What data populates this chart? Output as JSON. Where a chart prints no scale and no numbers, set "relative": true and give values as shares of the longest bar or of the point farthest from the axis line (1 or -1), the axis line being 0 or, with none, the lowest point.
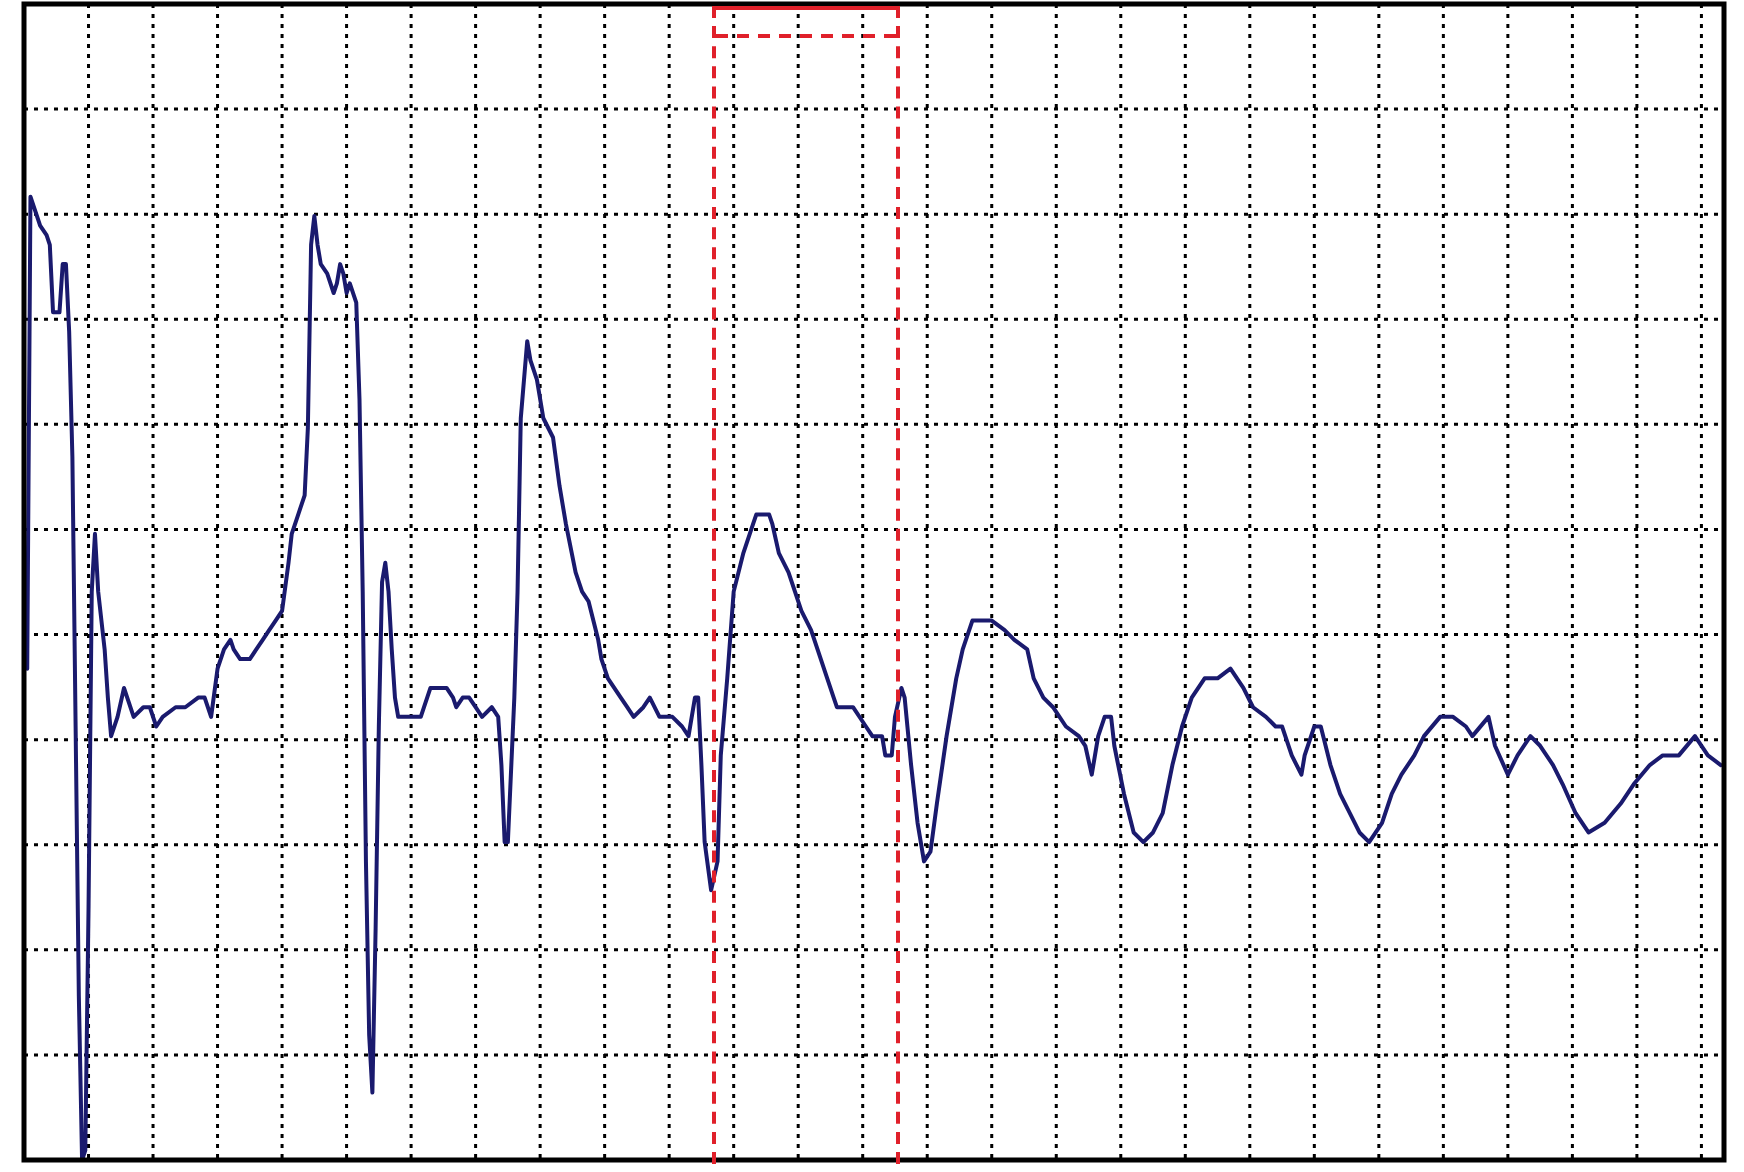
{
  "chart_data": {
    "type": "line",
    "relative": true,
    "grid": true,
    "marker": "none",
    "line_style": "solid",
    "categories": [
      null,
      null,
      null,
      null,
      null,
      null,
      null,
      null,
      null,
      null,
      null,
      null,
      null,
      null,
      null,
      null,
      null,
      null,
      null,
      null,
      null,
      null,
      null,
      null,
      null,
      null,
      null,
      null,
      null,
      null,
      null,
      null,
      null,
      null,
      null,
      null,
      null,
      null,
      null,
      null,
      null,
      null,
      null,
      null,
      null,
      null,
      null,
      null,
      null,
      null,
      null,
      null,
      null,
      null,
      null,
      null,
      null,
      null,
      null,
      null,
      null,
      null,
      null,
      null,
      null,
      null,
      null,
      null,
      null,
      null,
      null,
      null,
      null,
      null,
      null,
      null,
      null,
      null,
      null,
      null,
      null,
      null,
      null,
      null,
      null,
      null,
      null,
      null,
      null,
      null,
      null,
      null,
      null,
      null,
      null,
      null,
      null,
      null,
      null,
      null,
      null,
      null,
      null,
      null,
      null,
      null,
      null,
      null,
      null,
      null,
      null,
      null,
      null,
      null,
      null,
      null,
      null,
      null,
      null,
      null,
      null,
      null,
      null,
      null,
      null,
      null,
      null,
      null,
      null,
      null,
      null,
      null,
      null,
      null,
      null,
      null,
      null,
      null,
      null,
      null,
      null,
      null,
      null,
      null,
      null,
      null,
      null,
      null,
      null,
      null,
      null,
      null,
      null,
      null,
      null,
      null,
      null,
      null,
      null,
      null,
      null,
      null,
      null,
      null,
      null,
      null,
      null,
      null,
      null,
      null,
      null,
      null,
      null,
      null,
      null,
      null,
      null,
      null,
      null,
      null,
      null,
      null,
      null,
      null,
      null,
      null,
      null,
      null,
      null,
      null,
      null,
      null,
      null,
      null,
      null,
      null,
      null,
      null,
      null,
      null,
      null,
      null,
      null,
      null,
      null,
      null,
      null,
      null,
      null,
      null,
      null,
      null,
      null,
      null,
      null,
      null,
      null,
      null,
      null,
      null,
      null,
      null,
      null,
      null,
      null,
      null,
      null,
      null,
      null,
      null,
      null,
      null,
      null,
      null,
      null,
      null,
      null,
      null,
      null,
      null,
      null,
      null,
      null,
      null,
      null,
      null,
      null,
      null,
      null,
      null,
      null,
      null,
      null,
      null,
      null,
      null,
      null,
      null,
      null,
      null,
      null,
      null,
      null,
      null,
      null,
      null,
      null,
      null,
      null,
      null,
      null,
      null,
      null,
      null,
      null,
      null,
      null,
      null,
      null,
      null,
      null,
      null,
      null,
      null,
      null,
      null,
      null,
      null,
      null,
      null,
      null,
      null,
      null,
      null,
      null,
      null,
      null,
      null,
      null,
      null,
      null,
      null,
      null,
      null,
      null,
      null,
      null,
      null,
      null,
      null,
      null,
      null,
      null,
      null,
      null,
      null,
      null,
      null,
      null,
      null,
      null,
      null,
      null,
      null,
      null,
      null,
      null,
      null,
      null,
      null,
      null,
      null,
      null,
      null,
      null,
      null,
      null,
      null,
      null,
      null,
      null,
      null,
      null,
      null,
      null,
      null,
      null,
      null,
      null,
      null,
      null,
      null,
      null,
      null,
      null,
      null,
      null,
      null,
      null,
      null,
      null,
      null,
      null,
      null,
      null,
      null,
      null,
      null,
      null,
      null,
      null,
      null,
      null,
      null,
      null,
      null,
      null,
      null,
      null,
      null,
      null,
      null,
      null,
      null,
      null,
      null,
      null,
      null,
      null,
      null,
      null,
      null,
      null,
      null,
      null,
      null,
      null,
      null,
      null,
      null,
      null,
      null,
      null,
      null,
      null,
      null,
      null,
      null,
      null,
      null,
      null,
      null,
      null,
      null,
      null,
      null,
      null,
      null,
      null,
      null,
      null,
      null,
      null,
      null,
      null,
      null,
      null,
      null,
      null,
      null,
      null,
      null,
      null,
      null,
      null,
      null,
      null,
      null,
      null,
      null,
      null,
      null,
      null,
      null,
      null,
      null,
      null,
      null,
      null,
      null,
      null,
      null,
      null,
      null,
      null,
      null,
      null,
      null,
      null,
      null,
      null,
      null,
      null,
      null,
      null,
      null,
      null,
      null,
      null,
      null,
      null,
      null,
      null,
      null,
      null,
      null,
      null,
      null,
      null,
      null,
      null,
      null,
      null,
      null,
      null,
      null,
      null,
      null,
      null,
      null,
      null,
      null,
      null,
      null,
      null,
      null,
      null,
      null,
      null,
      null,
      null,
      null,
      null,
      null,
      null,
      null,
      null,
      null,
      null,
      null,
      null,
      null,
      null,
      null,
      null,
      null,
      null,
      null,
      null,
      null,
      null,
      null,
      null,
      null,
      null,
      null,
      null,
      null
    ],
    "series": [
      {
        "color": "#1a1a6e",
        "values": [
          null,
          0.51,
          1.0,
          null,
          0.98,
          0.97,
          null,
          0.96,
          0.95,
          0.88,
          null,
          0.88,
          0.93,
          0.93,
          0.86,
          0.73,
          0.45,
          0.17,
          0.0,
          0.01,
          0.26,
          0.59,
          0.65,
          0.59,
          null,
          0.53,
          0.48,
          0.44,
          null,
          0.46,
          null,
          0.49,
          0.48,
          null,
          0.46,
          null,
          null,
          0.47,
          null,
          0.47,
          null,
          0.45,
          null,
          0.46,
          null,
          null,
          null,
          0.47,
          null,
          null,
          0.47,
          null,
          null,
          null,
          0.48,
          null,
          0.48,
          null,
          0.46,
          null,
          0.51,
          null,
          0.53,
          null,
          0.54,
          0.53,
          null,
          0.52,
          null,
          null,
          0.52,
          null,
          0.53,
          null,
          0.54,
          null,
          0.55,
          null,
          0.56,
          null,
          0.57,
          null,
          0.62,
          0.65,
          null,
          0.67,
          null,
          0.69,
          0.76,
          0.95,
          0.98,
          0.95,
          0.93,
          null,
          0.92,
          null,
          0.9,
          0.91,
          0.93,
          0.92,
          0.9,
          0.91,
          null,
          0.89,
          0.79,
          0.59,
          0.31,
          0.13,
          0.07,
          0.24,
          0.45,
          0.6,
          0.62,
          0.59,
          0.53,
          0.48,
          0.46,
          null,
          null,
          0.46,
          null,
          null,
          null,
          0.46,
          0.47,
          null,
          0.49,
          null,
          null,
          0.49,
          null,
          0.49,
          null,
          0.48,
          0.47,
          null,
          0.48,
          null,
          0.48,
          null,
          0.47,
          null,
          0.46,
          null,
          null,
          0.47,
          null,
          0.46,
          0.41,
          0.33,
          0.33,
          null,
          0.48,
          0.59,
          0.77,
          null,
          0.85,
          0.83,
          null,
          0.81,
          null,
          0.77,
          null,
          null,
          0.75,
          null,
          0.7,
          null,
          0.66,
          null,
          null,
          0.61,
          null,
          0.59,
          null,
          0.58,
          null,
          null,
          0.54,
          0.52,
          null,
          0.5,
          null,
          null,
          null,
          0.48,
          null,
          0.47,
          null,
          0.46,
          null,
          null,
          0.47,
          null,
          0.48,
          null,
          null,
          0.46,
          null,
          null,
          0.46,
          0.46,
          null,
          null,
          0.45,
          null,
          0.44,
          null,
          0.48,
          0.48,
          0.41,
          0.33,
          null,
          0.28,
          null,
          0.31,
          0.42,
          null,
          0.5,
          null,
          0.59,
          null,
          null,
          0.63,
          null,
          null,
          0.66,
          0.67,
          null,
          null,
          null,
          0.67,
          0.66,
          null,
          0.63,
          null,
          null,
          0.61,
          null,
          0.59,
          null,
          0.57,
          null,
          null,
          0.55,
          null,
          0.53,
          null,
          null,
          0.5,
          null,
          0.48,
          0.47,
          null,
          null,
          null,
          null,
          0.47,
          null,
          null,
          null,
          0.45,
          null,
          0.44,
          null,
          null,
          0.44,
          0.42,
          null,
          0.42,
          0.46,
          null,
          0.49,
          0.48,
          null,
          0.41,
          null,
          0.35,
          null,
          0.31,
          null,
          0.32,
          null,
          0.37,
          null,
          null,
          0.44,
          null,
          null,
          0.5,
          null,
          0.53,
          null,
          null,
          0.56,
          null,
          null,
          0.56,
          null,
          null,
          0.56,
          null,
          null,
          null,
          0.55,
          null,
          null,
          0.54,
          null,
          null,
          null,
          0.53,
          null,
          0.5,
          null,
          null,
          0.48,
          null,
          null,
          0.47,
          null,
          null,
          null,
          0.45,
          null,
          null,
          null,
          0.44,
          null,
          0.43,
          null,
          0.4,
          null,
          0.44,
          null,
          0.46,
          null,
          0.46,
          0.43,
          null,
          null,
          0.38,
          null,
          null,
          0.34,
          null,
          null,
          0.33,
          null,
          null,
          0.34,
          null,
          null,
          0.36,
          null,
          null,
          0.41,
          null,
          null,
          0.45,
          null,
          null,
          0.48,
          null,
          null,
          null,
          0.5,
          null,
          null,
          null,
          0.5,
          null,
          null,
          null,
          0.51,
          null,
          null,
          null,
          0.49,
          null,
          null,
          0.47,
          null,
          null,
          null,
          0.46,
          null,
          null,
          0.45,
          null,
          0.45,
          null,
          null,
          0.42,
          null,
          null,
          0.4,
          0.42,
          null,
          null,
          0.45,
          null,
          0.45,
          null,
          null,
          0.41,
          null,
          null,
          0.38,
          null,
          null,
          0.36,
          null,
          null,
          0.34,
          null,
          null,
          0.33,
          null,
          null,
          null,
          0.35,
          null,
          null,
          0.38,
          null,
          null,
          0.4,
          null,
          null,
          null,
          0.42,
          null,
          null,
          0.44,
          null,
          null,
          null,
          null,
          0.46,
          null,
          null,
          null,
          0.46,
          null,
          null,
          null,
          0.45,
          null,
          0.44,
          null,
          null,
          null,
          null,
          0.46,
          null,
          0.43,
          null,
          null,
          null,
          0.4,
          null,
          null,
          0.42,
          null,
          null,
          null,
          0.44,
          null,
          null,
          0.43,
          null,
          null,
          null,
          0.41,
          null,
          null,
          0.39,
          null,
          null,
          null,
          0.36,
          null,
          null,
          null,
          0.34,
          null,
          null,
          null,
          null,
          0.35,
          null,
          null,
          null,
          null,
          0.37,
          null,
          null,
          null,
          0.39,
          null,
          null,
          null,
          null,
          0.41,
          null,
          null,
          null,
          0.42,
          null,
          null,
          null,
          null,
          0.42,
          null,
          null,
          null,
          null,
          0.44,
          null,
          null,
          null,
          0.42,
          null,
          null,
          null,
          0.41,
          null
        ]
      }
    ]
  }
}
